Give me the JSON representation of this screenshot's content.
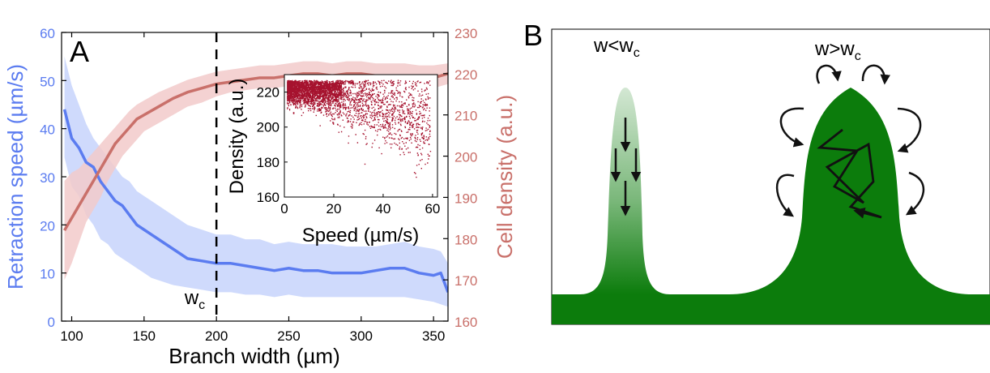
{
  "colors": {
    "blue": "#5B7CF0",
    "blue_band": "#C7D3FC",
    "red": "#C9706A",
    "red_band": "#F2CACA",
    "scatter": "#A6122E",
    "green": "#0C7C0C",
    "axis": "#000000"
  },
  "chart_data": [
    {
      "type": "line",
      "panel": "A",
      "xlabel": "Branch width (µm)",
      "ylabel": "Retraction speed (µm/s)",
      "y2label": "Cell density (a.u.)",
      "xlim": [
        93,
        360
      ],
      "xticks": [
        "100",
        "150",
        "200",
        "250",
        "300",
        "350"
      ],
      "ylim": [
        0,
        60
      ],
      "yticks": [
        "0",
        "10",
        "20",
        "30",
        "40",
        "50",
        "60"
      ],
      "y2lim": [
        160,
        230
      ],
      "y2ticks": [
        "160",
        "170",
        "180",
        "190",
        "200",
        "210",
        "220",
        "230"
      ],
      "vline": {
        "x": 200,
        "label": "w",
        "label_sub": "c"
      },
      "series": [
        {
          "axis": "left",
          "color": "blue",
          "x": [
            95,
            100,
            105,
            110,
            115,
            120,
            125,
            130,
            135,
            140,
            145,
            150,
            155,
            160,
            170,
            180,
            190,
            200,
            210,
            220,
            230,
            240,
            250,
            260,
            270,
            280,
            290,
            300,
            310,
            320,
            330,
            340,
            350,
            355,
            360
          ],
          "y": [
            44,
            38,
            36,
            33,
            32,
            29,
            27,
            25,
            24,
            22,
            20,
            19,
            18,
            17,
            15,
            13,
            12.5,
            12,
            12,
            11.5,
            11,
            10.5,
            11,
            10.5,
            10.5,
            10,
            10,
            10,
            10.5,
            11,
            11,
            10,
            9.5,
            10,
            6
          ],
          "lower": [
            34,
            28,
            26,
            22,
            20,
            17,
            16,
            14,
            13,
            12,
            11,
            10,
            9,
            8.5,
            7.5,
            7,
            6.5,
            6,
            6,
            5.5,
            5.5,
            5,
            5.5,
            5,
            5,
            5,
            5,
            5,
            5,
            5,
            5,
            4.5,
            4,
            3.5,
            3
          ],
          "upper": [
            55,
            49,
            45,
            41,
            38,
            36,
            34,
            32,
            30,
            29,
            27,
            26,
            25,
            24,
            22,
            20,
            19,
            18,
            18,
            17,
            17,
            16,
            16.5,
            16,
            16,
            16,
            15.5,
            15.5,
            15.5,
            16,
            16.5,
            15.5,
            15,
            14.5,
            12
          ]
        },
        {
          "axis": "right",
          "color": "red",
          "x": [
            95,
            100,
            105,
            110,
            115,
            120,
            125,
            130,
            135,
            140,
            145,
            150,
            160,
            170,
            180,
            190,
            200,
            210,
            220,
            230,
            240,
            250,
            260,
            270,
            280,
            290,
            300,
            310,
            320,
            330,
            340,
            350,
            360
          ],
          "y": [
            182,
            185,
            188,
            191,
            194,
            197,
            200,
            203,
            205,
            207,
            209,
            210,
            212,
            214,
            215.5,
            216.5,
            217.5,
            218,
            218.5,
            219,
            219,
            219.5,
            220,
            220,
            219.5,
            220,
            220,
            219.5,
            219.5,
            219.5,
            219,
            219,
            220
          ],
          "lower": [
            170,
            174,
            179,
            184,
            187,
            190,
            194,
            197,
            200,
            202,
            204,
            206,
            208,
            210,
            212,
            213,
            214.5,
            215.5,
            216,
            216.5,
            216.5,
            217,
            217.5,
            217.5,
            217,
            217.5,
            217.5,
            217,
            217,
            217,
            216.5,
            216.5,
            217.5
          ],
          "upper": [
            194,
            196,
            197,
            199,
            201,
            203,
            205,
            207,
            209,
            211,
            212.5,
            213.5,
            215.5,
            217,
            218.5,
            219.5,
            220.5,
            221,
            221.5,
            222,
            222,
            222.5,
            223,
            223,
            222.5,
            223,
            223,
            222.5,
            222.5,
            222.5,
            222,
            222,
            222.5
          ]
        }
      ]
    },
    {
      "type": "scatter",
      "panel": "inset",
      "xlabel": "Speed (µm/s)",
      "ylabel": "Density (a.u.)",
      "xlim": [
        0,
        62
      ],
      "xticks": [
        "0",
        "20",
        "40",
        "60"
      ],
      "ylim": [
        160,
        230
      ],
      "yticks": [
        "160",
        "180",
        "200",
        "220"
      ],
      "color": "scatter"
    }
  ],
  "panel_a_label": "A",
  "panel_b": {
    "label": "B",
    "narrow": {
      "text": "w<w",
      "sub": "c"
    },
    "wide": {
      "text": "w>w",
      "sub": "c"
    }
  }
}
